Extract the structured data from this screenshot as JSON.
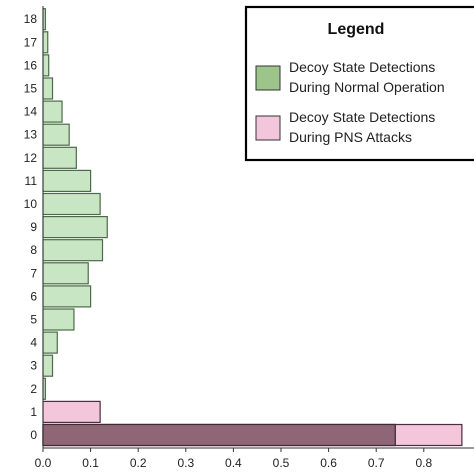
{
  "chart_data": {
    "type": "bar",
    "orientation": "horizontal",
    "categories": [
      "0",
      "1",
      "2",
      "3",
      "4",
      "5",
      "6",
      "7",
      "8",
      "9",
      "10",
      "11",
      "12",
      "13",
      "14",
      "15",
      "16",
      "17",
      "18"
    ],
    "series": [
      {
        "name": "Decoy State Detections During Normal Operation",
        "color": "#c8e6c4",
        "border": "#4d6b4a",
        "values": [
          0.74,
          0.0,
          0.005,
          0.02,
          0.03,
          0.065,
          0.1,
          0.095,
          0.125,
          0.135,
          0.12,
          0.1,
          0.07,
          0.055,
          0.04,
          0.02,
          0.012,
          0.01,
          0.005
        ]
      },
      {
        "name": "Decoy State Detections During PNS Attacks",
        "color": "#f4c6dc",
        "border": "#4a2e3c",
        "values": [
          0.88,
          0.12,
          0,
          0,
          0,
          0,
          0,
          0,
          0,
          0,
          0,
          0,
          0,
          0,
          0,
          0,
          0,
          0,
          0
        ]
      }
    ],
    "overlap_color": "#8f6675",
    "xlim": [
      0,
      0.9
    ],
    "xticks": [
      "0.0",
      "0.1",
      "0.2",
      "0.3",
      "0.4",
      "0.5",
      "0.6",
      "0.7",
      "0.8"
    ],
    "legend": {
      "title": "Legend",
      "position": "top-right",
      "items": [
        [
          "Decoy State Detections",
          "During Normal Operation"
        ],
        [
          "Decoy State Detections",
          "During PNS Attacks"
        ]
      ]
    },
    "grid": false,
    "title": "",
    "xlabel": "",
    "ylabel": ""
  }
}
